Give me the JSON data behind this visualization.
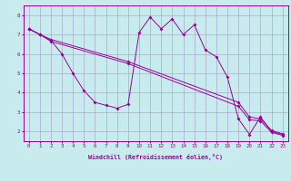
{
  "background_color": "#c8eced",
  "line_color": "#990099",
  "grid_color": "#aaaacc",
  "xlabel": "Windchill (Refroidissement éolien,°C)",
  "xlim": [
    -0.5,
    23.5
  ],
  "ylim": [
    1.5,
    8.5
  ],
  "yticks": [
    2,
    3,
    4,
    5,
    6,
    7,
    8
  ],
  "xticks": [
    0,
    1,
    2,
    3,
    4,
    5,
    6,
    7,
    8,
    9,
    10,
    11,
    12,
    13,
    14,
    15,
    16,
    17,
    18,
    19,
    20,
    21,
    22,
    23
  ],
  "series1": {
    "x": [
      0,
      1,
      2,
      3,
      4,
      5,
      6,
      7,
      8,
      9,
      10,
      11,
      12,
      13,
      14,
      15,
      16,
      17,
      18,
      19,
      20,
      21,
      22,
      23
    ],
    "y": [
      7.3,
      7.0,
      6.7,
      6.0,
      5.0,
      4.1,
      3.5,
      3.35,
      3.2,
      3.4,
      7.1,
      7.9,
      7.3,
      7.8,
      7.0,
      7.5,
      6.2,
      5.85,
      4.8,
      2.65,
      1.85,
      2.75,
      2.0,
      1.85
    ]
  },
  "series2": {
    "x": [
      0,
      1,
      2,
      9,
      19,
      20,
      21,
      22,
      23
    ],
    "y": [
      7.3,
      7.0,
      6.65,
      5.5,
      3.3,
      2.6,
      2.55,
      1.95,
      1.8
    ]
  },
  "series3": {
    "x": [
      0,
      1,
      2,
      9,
      19,
      20,
      21,
      22,
      23
    ],
    "y": [
      7.3,
      7.0,
      6.75,
      5.6,
      3.5,
      2.75,
      2.65,
      2.05,
      1.88
    ]
  },
  "marker_size": 2.0,
  "line_width": 0.7,
  "font_size_tick": 4.2,
  "font_size_label": 4.8
}
